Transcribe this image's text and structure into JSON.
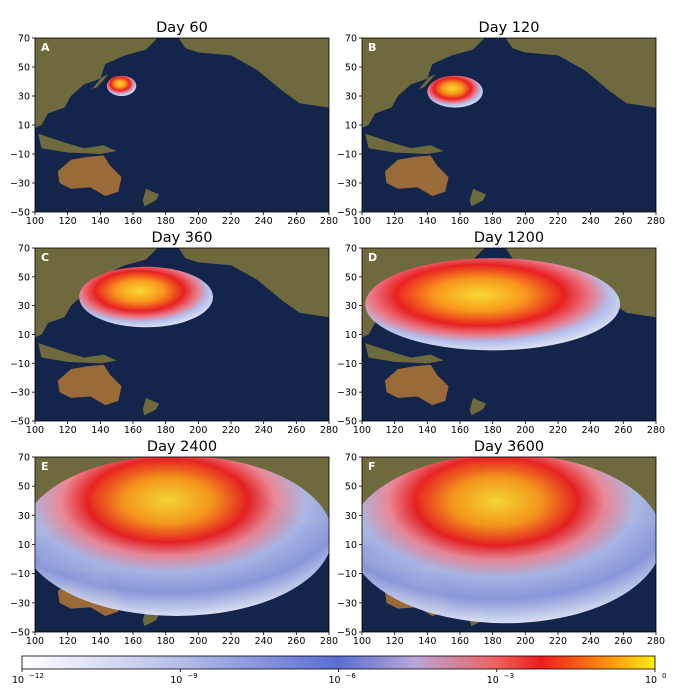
{
  "chart_data": [
    {
      "type": "heatmap",
      "panel": "A",
      "title": "Day 60",
      "xlim": [
        100,
        280
      ],
      "ylim": [
        -50,
        70
      ],
      "xticks": [
        100,
        120,
        140,
        160,
        180,
        200,
        220,
        240,
        260,
        280
      ],
      "yticks": [
        70,
        50,
        30,
        10,
        -10,
        -30,
        -50
      ],
      "plume": {
        "cx": 153,
        "cy": 37,
        "rx": 9,
        "ry": 7
      }
    },
    {
      "type": "heatmap",
      "panel": "B",
      "title": "Day 120",
      "xlim": [
        100,
        280
      ],
      "ylim": [
        -50,
        70
      ],
      "xticks": [
        100,
        120,
        140,
        160,
        180,
        200,
        220,
        240,
        260,
        280
      ],
      "yticks": [
        70,
        50,
        30,
        10,
        -10,
        -30,
        -50
      ],
      "plume": {
        "cx": 157,
        "cy": 33,
        "rx": 17,
        "ry": 11
      }
    },
    {
      "type": "heatmap",
      "panel": "C",
      "title": "Day 360",
      "xlim": [
        100,
        280
      ],
      "ylim": [
        -50,
        70
      ],
      "xticks": [
        100,
        120,
        140,
        160,
        180,
        200,
        220,
        240,
        260,
        280
      ],
      "yticks": [
        70,
        50,
        30,
        10,
        -10,
        -30,
        -50
      ],
      "plume": {
        "cx": 168,
        "cy": 36,
        "rx": 41,
        "ry": 21
      }
    },
    {
      "type": "heatmap",
      "panel": "D",
      "title": "Day 1200",
      "xlim": [
        100,
        280
      ],
      "ylim": [
        -50,
        70
      ],
      "xticks": [
        100,
        120,
        140,
        160,
        180,
        200,
        220,
        240,
        260,
        280
      ],
      "yticks": [
        70,
        50,
        30,
        10,
        -10,
        -30,
        -50
      ],
      "plume": {
        "cx": 180,
        "cy": 31,
        "rx": 78,
        "ry": 32
      }
    },
    {
      "type": "heatmap",
      "panel": "E",
      "title": "Day 2400",
      "xlim": [
        100,
        280
      ],
      "ylim": [
        -50,
        70
      ],
      "xticks": [
        100,
        120,
        140,
        160,
        180,
        200,
        220,
        240,
        260,
        280
      ],
      "yticks": [
        70,
        50,
        30,
        10,
        -10,
        -30,
        -50
      ],
      "plume": {
        "cx": 187,
        "cy": 16,
        "rx": 95,
        "ry": 55
      }
    },
    {
      "type": "heatmap",
      "panel": "F",
      "title": "Day 3600",
      "xlim": [
        100,
        280
      ],
      "ylim": [
        -50,
        70
      ],
      "xticks": [
        100,
        120,
        140,
        160,
        180,
        200,
        220,
        240,
        260,
        280
      ],
      "yticks": [
        70,
        50,
        30,
        10,
        -10,
        -30,
        -50
      ],
      "plume": {
        "cx": 188,
        "cy": 14,
        "rx": 96,
        "ry": 58
      }
    }
  ],
  "colorbar": {
    "ticks": [
      {
        "base": "10",
        "exp": "−12"
      },
      {
        "base": "10",
        "exp": "−9"
      },
      {
        "base": "10",
        "exp": "−6"
      },
      {
        "base": "10",
        "exp": "−3"
      },
      {
        "base": "10",
        "exp": "0"
      }
    ],
    "colors": [
      "#ffffff",
      "#aeb8e8",
      "#5d6fd4",
      "#c8a9c8",
      "#f05050",
      "#ee2020",
      "#ff9000",
      "#ffee10"
    ]
  },
  "colors": {
    "ocean": "#13254a",
    "land": "#6f6a3e",
    "outback": "#9a6a38",
    "plume_red": "#e82020",
    "plume_orange": "#ff8c1a",
    "plume_yellow": "#ffe030",
    "plume_blue": "#b8c4f0"
  }
}
